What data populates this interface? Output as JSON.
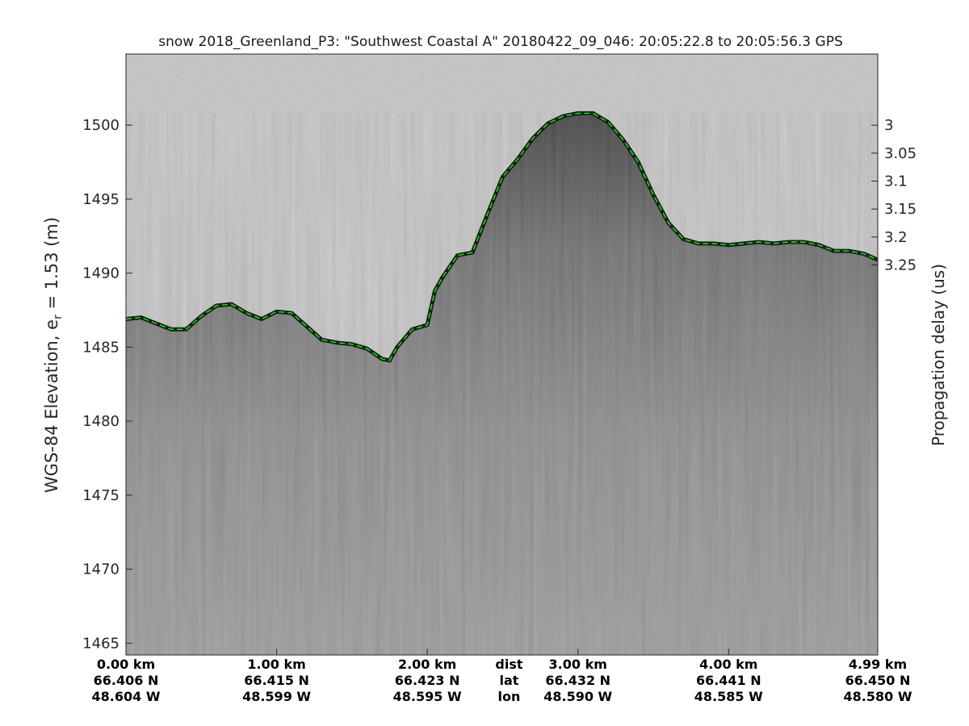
{
  "chart_data": {
    "type": "radargram",
    "title": "snow 2018_Greenland_P3: \"Southwest Coastal A\"  20180422_09_046: 20:05:22.8 to 20:05:56.3 GPS",
    "ylabel_left_main": "WGS-84 Elevation, e",
    "ylabel_left_sub": "r",
    "ylabel_left_tail": " = 1.53 (m)",
    "ylabel_right": "Propagation delay (us)",
    "ylim_left": [
      1464.2,
      1504.8
    ],
    "yticks_left": [
      "1465",
      "1470",
      "1475",
      "1480",
      "1485",
      "1490",
      "1495",
      "1500"
    ],
    "yticks_left_values": [
      1465,
      1470,
      1475,
      1480,
      1485,
      1490,
      1495,
      1500
    ],
    "yticks_right": [
      "3",
      "3.05",
      "3.1",
      "3.15",
      "3.2",
      "3.25"
    ],
    "yticks_right_values": [
      3.0,
      3.05,
      3.1,
      3.15,
      3.2,
      3.25
    ],
    "right_axis_delay_at_left_1500": 2.9998,
    "right_axis_us_per_m_left": 0.02648,
    "xlim_km": [
      0,
      4.99
    ],
    "x_columns": [
      {
        "dist": "0.00 km",
        "lat": "66.406 N",
        "lon": "48.604 W",
        "km": 0.0
      },
      {
        "dist": "1.00 km",
        "lat": "66.415 N",
        "lon": "48.599 W",
        "km": 1.0
      },
      {
        "dist": "2.00 km",
        "lat": "66.423 N",
        "lon": "48.595 W",
        "km": 2.0
      },
      {
        "dist": "3.00 km",
        "lat": "66.432 N",
        "lon": "48.590 W",
        "km": 3.0
      },
      {
        "dist": "4.00 km",
        "lat": "66.441 N",
        "lon": "48.585 W",
        "km": 4.0
      },
      {
        "dist": "4.99 km",
        "lat": "66.450 N",
        "lon": "48.580 W",
        "km": 4.99
      }
    ],
    "x_row_labels": {
      "dist": "dist",
      "lat": "lat",
      "lon": "lon",
      "km": 2.5
    },
    "surface": {
      "name": "surface",
      "color": "#00ff00",
      "style": "dashed",
      "x_km": [
        0.0,
        0.1,
        0.2,
        0.3,
        0.4,
        0.5,
        0.6,
        0.7,
        0.8,
        0.9,
        1.0,
        1.1,
        1.2,
        1.3,
        1.4,
        1.5,
        1.6,
        1.7,
        1.75,
        1.8,
        1.9,
        2.0,
        2.05,
        2.1,
        2.2,
        2.3,
        2.4,
        2.5,
        2.6,
        2.7,
        2.8,
        2.9,
        3.0,
        3.1,
        3.2,
        3.3,
        3.4,
        3.5,
        3.6,
        3.7,
        3.8,
        3.9,
        4.0,
        4.1,
        4.2,
        4.3,
        4.4,
        4.5,
        4.6,
        4.7,
        4.8,
        4.9,
        4.99
      ],
      "elevation_m": [
        1486.9,
        1487.0,
        1486.6,
        1486.2,
        1486.2,
        1487.1,
        1487.8,
        1487.9,
        1487.3,
        1486.9,
        1487.4,
        1487.3,
        1486.4,
        1485.5,
        1485.3,
        1485.2,
        1484.9,
        1484.2,
        1484.1,
        1485.0,
        1486.2,
        1486.5,
        1488.8,
        1489.7,
        1491.2,
        1491.4,
        1494.0,
        1496.5,
        1497.7,
        1499.1,
        1500.1,
        1500.6,
        1500.8,
        1500.8,
        1500.2,
        1499.0,
        1497.5,
        1495.3,
        1493.4,
        1492.3,
        1492.0,
        1492.0,
        1491.9,
        1492.0,
        1492.1,
        1492.0,
        1492.1,
        1492.1,
        1491.9,
        1491.5,
        1491.5,
        1491.3,
        1490.9
      ]
    }
  }
}
